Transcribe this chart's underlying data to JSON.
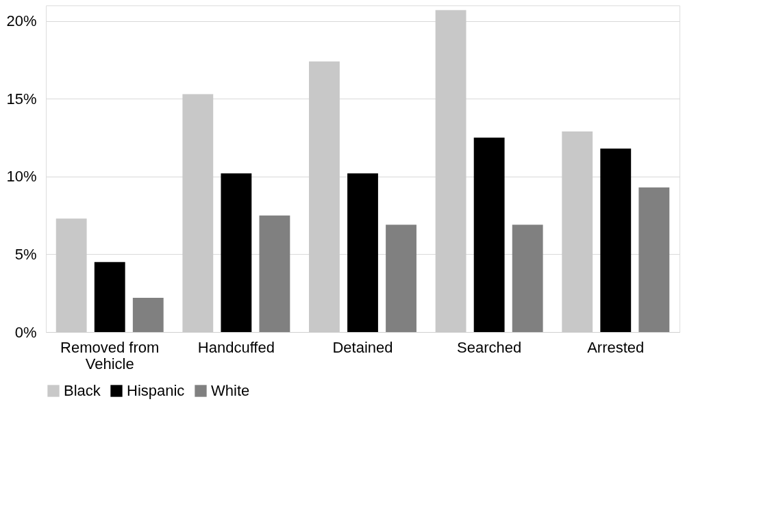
{
  "chart_data": {
    "type": "bar",
    "categories": [
      "Removed from Vehicle",
      "Handcuffed",
      "Detained",
      "Searched",
      "Arrested"
    ],
    "series": [
      {
        "name": "Black",
        "color": "#c8c8c8",
        "values": [
          7.3,
          15.3,
          17.4,
          20.7,
          12.9
        ]
      },
      {
        "name": "Hispanic",
        "color": "#000000",
        "values": [
          4.5,
          10.2,
          10.2,
          12.5,
          11.8
        ]
      },
      {
        "name": "White",
        "color": "#808080",
        "values": [
          2.2,
          7.5,
          6.9,
          6.9,
          9.3
        ]
      }
    ],
    "ylim": [
      0,
      21
    ],
    "yticks": [
      {
        "value": 0,
        "label": "0%"
      },
      {
        "value": 5,
        "label": "5%"
      },
      {
        "value": 10,
        "label": "10%"
      },
      {
        "value": 15,
        "label": "15%"
      },
      {
        "value": 20,
        "label": "20%"
      }
    ],
    "grid": "y",
    "legend": "bottom"
  }
}
